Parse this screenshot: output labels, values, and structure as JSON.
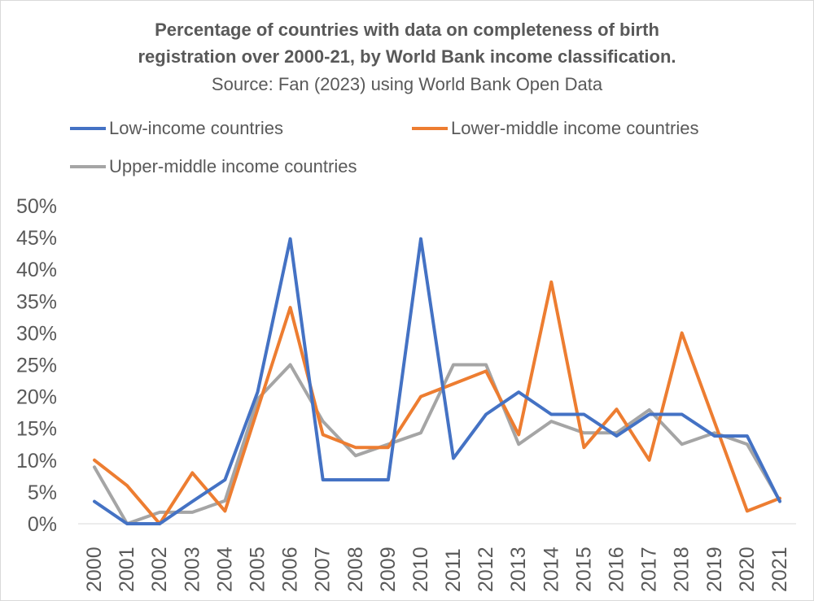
{
  "chart_data": {
    "type": "line",
    "title": "Percentage of countries with data on completeness of birth registration over 2000-21, by World Bank income classification.",
    "title_line1": "Percentage of countries with data on completeness of birth",
    "title_line2": "registration over 2000-21, by World Bank income classification.",
    "subtitle": "Source: Fan (2023) using World Bank Open Data",
    "categories": [
      "2000",
      "2001",
      "2002",
      "2003",
      "2004",
      "2005",
      "2006",
      "2007",
      "2008",
      "2009",
      "2010",
      "2011",
      "2012",
      "2013",
      "2014",
      "2015",
      "2016",
      "2017",
      "2018",
      "2019",
      "2020",
      "2021"
    ],
    "ylim": [
      0,
      50
    ],
    "yticks": [
      "0%",
      "5%",
      "10%",
      "15%",
      "20%",
      "25%",
      "30%",
      "35%",
      "40%",
      "45%",
      "50%"
    ],
    "grid": false,
    "legend_position": "top",
    "series": [
      {
        "name": "Low-income countries",
        "color": "#4472c4",
        "values": [
          3.5,
          0,
          0,
          3.5,
          6.9,
          20.7,
          44.8,
          6.9,
          6.9,
          6.9,
          44.8,
          10.3,
          17.2,
          20.7,
          17.2,
          17.2,
          13.8,
          17.2,
          17.2,
          13.8,
          13.8,
          3.5
        ]
      },
      {
        "name": "Lower-middle income countries",
        "color": "#ed7d31",
        "values": [
          10,
          6,
          0,
          8,
          2,
          18,
          34,
          14,
          12,
          12,
          20,
          22,
          24,
          14,
          38,
          12,
          18,
          10,
          30,
          16,
          2,
          4
        ]
      },
      {
        "name": "Upper-middle income countries",
        "color": "#a5a5a5",
        "values": [
          8.9,
          0,
          1.8,
          1.8,
          3.6,
          19.6,
          25,
          16.1,
          10.7,
          12.5,
          14.3,
          25,
          25,
          12.5,
          16.1,
          14.3,
          14.3,
          17.9,
          12.5,
          14.3,
          12.5,
          3.6
        ]
      }
    ]
  }
}
